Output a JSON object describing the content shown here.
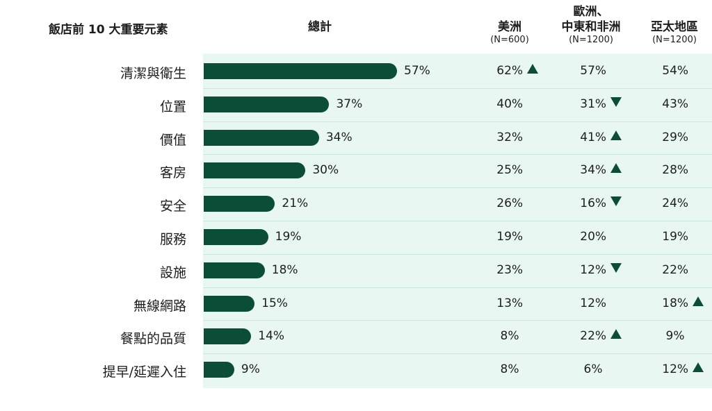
{
  "colors": {
    "bar": "#0b4d36",
    "panel": "#e9f7f2",
    "arrow": "#0b4d36"
  },
  "header": {
    "factors_title": "飯店前 10 大重要元素",
    "total_title": "總計",
    "col_americas": "美洲",
    "col_americas_n": "(N=600)",
    "col_emea_line1": "歐洲、",
    "col_emea_line2": "中東和非洲",
    "col_emea_n": "(N=1200)",
    "col_apac": "亞太地區",
    "col_apac_n": "(N=1200)"
  },
  "chart_data": {
    "type": "bar",
    "orientation": "horizontal",
    "categories": [
      "清潔與衛生",
      "位置",
      "價值",
      "客房",
      "安全",
      "服務",
      "設施",
      "無線網路",
      "餐點的品質",
      "提早/延遲入住"
    ],
    "series": [
      {
        "name": "總計",
        "values": [
          57,
          37,
          34,
          30,
          21,
          19,
          18,
          15,
          14,
          9
        ]
      }
    ],
    "value_labels": [
      "57%",
      "37%",
      "34%",
      "30%",
      "21%",
      "19%",
      "18%",
      "15%",
      "14%",
      "9%"
    ],
    "xlim": [
      0,
      100
    ],
    "table": [
      {
        "region": "美洲",
        "values": [
          "62%",
          "40%",
          "32%",
          "25%",
          "26%",
          "19%",
          "23%",
          "13%",
          "8%",
          "8%"
        ],
        "arrows": [
          "up",
          "",
          "",
          "",
          "",
          "",
          "",
          "",
          "",
          ""
        ]
      },
      {
        "region": "歐洲、中東和非洲",
        "values": [
          "57%",
          "31%",
          "41%",
          "34%",
          "16%",
          "20%",
          "12%",
          "12%",
          "22%",
          "6%"
        ],
        "arrows": [
          "",
          "down",
          "up",
          "up",
          "down",
          "",
          "down",
          "",
          "up",
          ""
        ]
      },
      {
        "region": "亞太地區",
        "values": [
          "54%",
          "43%",
          "29%",
          "28%",
          "24%",
          "19%",
          "22%",
          "18%",
          "9%",
          "12%"
        ],
        "arrows": [
          "",
          "",
          "",
          "",
          "",
          "",
          "",
          "up",
          "",
          "up"
        ]
      }
    ]
  }
}
